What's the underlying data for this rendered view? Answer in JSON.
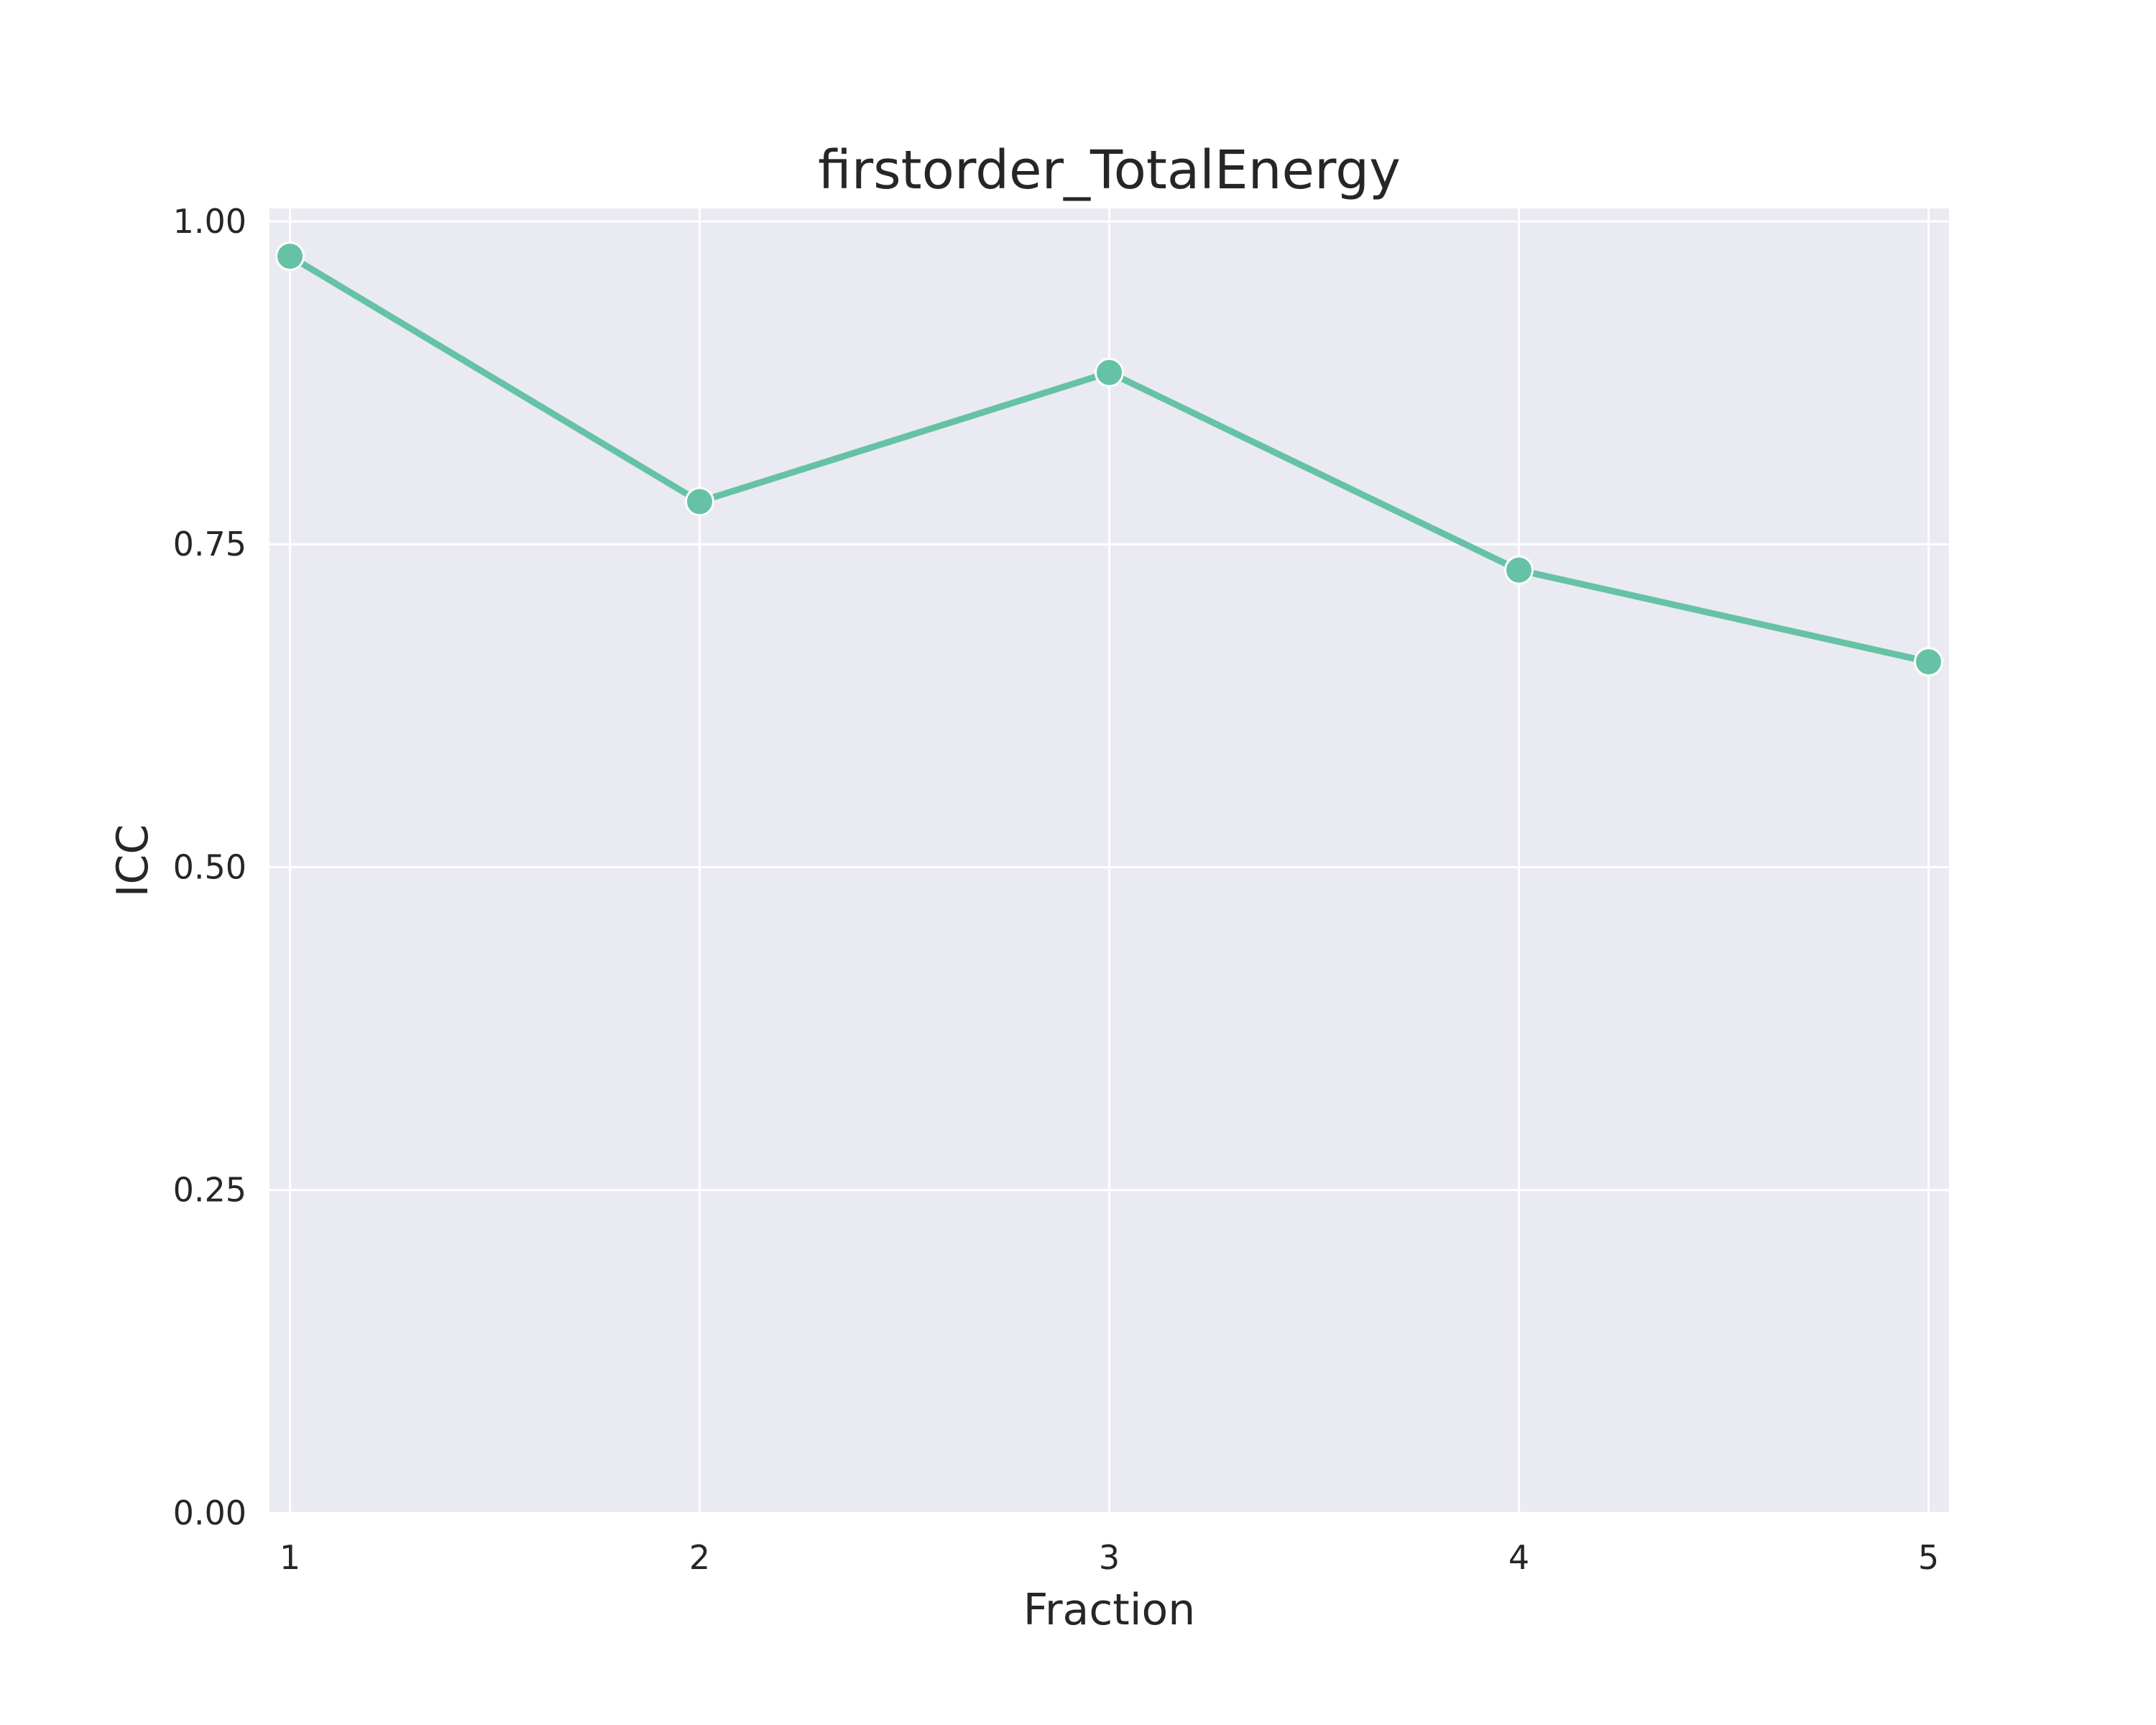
{
  "chart_data": {
    "type": "line",
    "title": "firstorder_TotalEnergy",
    "xlabel": "Fraction",
    "ylabel": "ICC",
    "x": [
      1,
      2,
      3,
      4,
      5
    ],
    "xticks": [
      "1",
      "2",
      "3",
      "4",
      "5"
    ],
    "yticks": [
      "0.00",
      "0.25",
      "0.50",
      "0.75",
      "1.00"
    ],
    "xlim": [
      0.95,
      5.05
    ],
    "ylim": [
      0,
      1.01
    ],
    "grid": true,
    "legend": "none",
    "background": "#eaeaf2",
    "series": [
      {
        "color": "#66c2a5",
        "values": [
          0.973,
          0.783,
          0.883,
          0.73,
          0.659
        ]
      }
    ]
  }
}
